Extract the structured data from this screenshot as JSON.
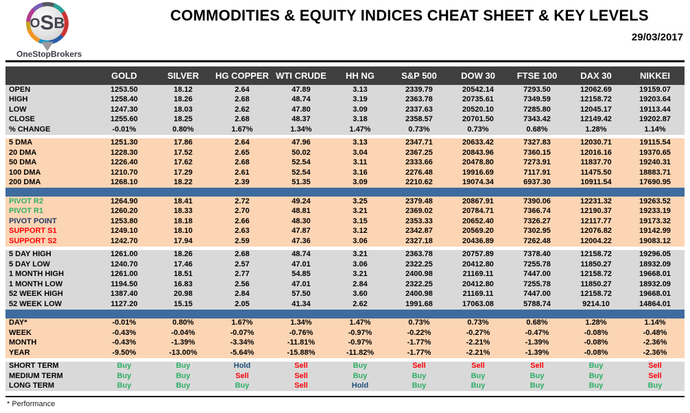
{
  "header": {
    "logo_abbr_o": "O",
    "logo_abbr_s": "S",
    "logo_abbr_b": "B",
    "logo_text": "OneStopBrokers",
    "title": "COMMODITIES & EQUITY INDICES CHEAT SHEET & KEY LEVELS",
    "date": "29/03/2017"
  },
  "colors": {
    "header_bar_bg": "#3f3f3f",
    "gray_section_bg": "#d9d9d9",
    "peach_section_bg": "#fcd5b4",
    "blue_separator": "#3e6c9e",
    "buy_green": "#2eae66",
    "sell_red": "#fb0007",
    "hold_navy": "#1f4e79",
    "pivot_point_navy": "#203864"
  },
  "table": {
    "columns": [
      "GOLD",
      "SILVER",
      "HG COPPER",
      "WTI CRUDE",
      "HH NG",
      "S&P 500",
      "DOW 30",
      "FTSE 100",
      "DAX 30",
      "NIKKEI"
    ],
    "sections": [
      {
        "name": "ohlc",
        "bg": "gray",
        "separator_after": "white",
        "rows": [
          {
            "label": "OPEN",
            "values": [
              "1253.50",
              "18.12",
              "2.64",
              "47.89",
              "3.13",
              "2339.79",
              "20542.14",
              "7293.50",
              "12062.69",
              "19159.07"
            ]
          },
          {
            "label": "HIGH",
            "values": [
              "1258.40",
              "18.26",
              "2.68",
              "48.74",
              "3.19",
              "2363.78",
              "20735.61",
              "7349.59",
              "12158.72",
              "19203.64"
            ]
          },
          {
            "label": "LOW",
            "values": [
              "1247.30",
              "18.03",
              "2.62",
              "47.80",
              "3.09",
              "2337.63",
              "20520.10",
              "7285.80",
              "12045.17",
              "19113.44"
            ]
          },
          {
            "label": "CLOSE",
            "values": [
              "1255.60",
              "18.25",
              "2.68",
              "48.37",
              "3.18",
              "2358.57",
              "20701.50",
              "7343.42",
              "12149.42",
              "19202.87"
            ]
          },
          {
            "label": "% CHANGE",
            "values": [
              "-0.01%",
              "0.80%",
              "1.67%",
              "1.34%",
              "1.47%",
              "0.73%",
              "0.73%",
              "0.68%",
              "1.28%",
              "1.14%"
            ]
          }
        ]
      },
      {
        "name": "moving-averages",
        "bg": "peach",
        "separator_after": "blue",
        "rows": [
          {
            "label": "5 DMA",
            "values": [
              "1251.30",
              "17.86",
              "2.64",
              "47.96",
              "3.13",
              "2347.71",
              "20633.42",
              "7327.83",
              "12030.71",
              "19115.54"
            ]
          },
          {
            "label": "20 DMA",
            "values": [
              "1228.30",
              "17.52",
              "2.65",
              "50.02",
              "3.04",
              "2367.25",
              "20843.96",
              "7360.15",
              "12016.16",
              "19370.65"
            ]
          },
          {
            "label": "50 DMA",
            "values": [
              "1226.40",
              "17.62",
              "2.68",
              "52.54",
              "3.11",
              "2333.66",
              "20478.80",
              "7273.91",
              "11837.70",
              "19240.31"
            ]
          },
          {
            "label": "100 DMA",
            "values": [
              "1210.70",
              "17.29",
              "2.61",
              "52.54",
              "3.16",
              "2276.48",
              "19916.69",
              "7117.91",
              "11475.50",
              "18883.71"
            ]
          },
          {
            "label": "200 DMA",
            "values": [
              "1268.10",
              "18.22",
              "2.39",
              "51.35",
              "3.09",
              "2210.62",
              "19074.34",
              "6937.30",
              "10911.54",
              "17690.95"
            ]
          }
        ]
      },
      {
        "name": "pivots",
        "bg": "peach",
        "separator_after": "white",
        "rows": [
          {
            "label": "PIVOT R2",
            "label_color": "green",
            "values": [
              "1264.90",
              "18.41",
              "2.72",
              "49.24",
              "3.25",
              "2379.48",
              "20867.91",
              "7390.06",
              "12231.32",
              "19263.52"
            ]
          },
          {
            "label": "PIVOT R1",
            "label_color": "green",
            "values": [
              "1260.20",
              "18.33",
              "2.70",
              "48.81",
              "3.21",
              "2369.02",
              "20784.71",
              "7366.74",
              "12190.37",
              "19233.19"
            ]
          },
          {
            "label": "PIVOT POINT",
            "label_color": "navy",
            "values": [
              "1253.80",
              "18.18",
              "2.66",
              "48.30",
              "3.15",
              "2353.33",
              "20652.40",
              "7326.27",
              "12117.77",
              "19173.32"
            ]
          },
          {
            "label": "SUPPORT S1",
            "label_color": "red",
            "values": [
              "1249.10",
              "18.10",
              "2.63",
              "47.87",
              "3.12",
              "2342.87",
              "20569.20",
              "7302.95",
              "12076.82",
              "19142.99"
            ]
          },
          {
            "label": "SUPPORT S2",
            "label_color": "red",
            "values": [
              "1242.70",
              "17.94",
              "2.59",
              "47.36",
              "3.06",
              "2327.18",
              "20436.89",
              "7262.48",
              "12004.22",
              "19083.12"
            ]
          }
        ]
      },
      {
        "name": "ranges",
        "bg": "gray",
        "separator_after": "blue",
        "rows": [
          {
            "label": "5 DAY HIGH",
            "values": [
              "1261.00",
              "18.26",
              "2.68",
              "48.74",
              "3.21",
              "2363.78",
              "20757.89",
              "7378.40",
              "12158.72",
              "19296.05"
            ]
          },
          {
            "label": "5 DAY LOW",
            "values": [
              "1240.70",
              "17.46",
              "2.57",
              "47.01",
              "3.06",
              "2322.25",
              "20412.80",
              "7255.78",
              "11850.27",
              "18932.09"
            ]
          },
          {
            "label": "1 MONTH HIGH",
            "values": [
              "1261.00",
              "18.51",
              "2.77",
              "54.85",
              "3.21",
              "2400.98",
              "21169.11",
              "7447.00",
              "12158.72",
              "19668.01"
            ]
          },
          {
            "label": "1 MONTH LOW",
            "values": [
              "1194.50",
              "16.83",
              "2.56",
              "47.01",
              "2.84",
              "2322.25",
              "20412.80",
              "7255.78",
              "11850.27",
              "18932.09"
            ]
          },
          {
            "label": "52 WEEK HIGH",
            "values": [
              "1387.40",
              "20.98",
              "2.84",
              "57.50",
              "3.60",
              "2400.98",
              "21169.11",
              "7447.00",
              "12158.72",
              "19668.01"
            ]
          },
          {
            "label": "52 WEEK LOW",
            "values": [
              "1127.20",
              "15.15",
              "2.05",
              "41.34",
              "2.62",
              "1991.68",
              "17063.08",
              "5788.74",
              "9214.10",
              "14864.01"
            ]
          }
        ]
      },
      {
        "name": "performance",
        "bg": "peach",
        "separator_after": "white",
        "rows": [
          {
            "label": "DAY*",
            "values": [
              "-0.01%",
              "0.80%",
              "1.67%",
              "1.34%",
              "1.47%",
              "0.73%",
              "0.73%",
              "0.68%",
              "1.28%",
              "1.14%"
            ]
          },
          {
            "label": "WEEK",
            "values": [
              "-0.43%",
              "-0.04%",
              "-0.07%",
              "-0.76%",
              "-0.97%",
              "-0.22%",
              "-0.27%",
              "-0.47%",
              "-0.08%",
              "-0.48%"
            ]
          },
          {
            "label": "MONTH",
            "values": [
              "-0.43%",
              "-1.39%",
              "-3.34%",
              "-11.81%",
              "-0.97%",
              "-1.77%",
              "-2.21%",
              "-1.39%",
              "-0.08%",
              "-2.36%"
            ]
          },
          {
            "label": "YEAR",
            "values": [
              "-9.50%",
              "-13.00%",
              "-5.64%",
              "-15.88%",
              "-11.82%",
              "-1.77%",
              "-2.21%",
              "-1.39%",
              "-0.08%",
              "-2.36%"
            ]
          }
        ]
      },
      {
        "name": "signals",
        "bg": "gray",
        "separator_after": "none",
        "rows": [
          {
            "label": "SHORT TERM",
            "signal_row": true,
            "values": [
              "Buy",
              "Buy",
              "Hold",
              "Sell",
              "Buy",
              "Sell",
              "Sell",
              "Sell",
              "Buy",
              "Sell"
            ]
          },
          {
            "label": "MEDIUM TERM",
            "signal_row": true,
            "values": [
              "Buy",
              "Buy",
              "Sell",
              "Sell",
              "Buy",
              "Buy",
              "Buy",
              "Buy",
              "Buy",
              "Sell"
            ]
          },
          {
            "label": "LONG TERM",
            "signal_row": true,
            "values": [
              "Buy",
              "Buy",
              "Buy",
              "Sell",
              "Hold",
              "Buy",
              "Buy",
              "Buy",
              "Buy",
              "Buy"
            ]
          }
        ]
      }
    ]
  },
  "footer": {
    "note": "* Performance"
  }
}
